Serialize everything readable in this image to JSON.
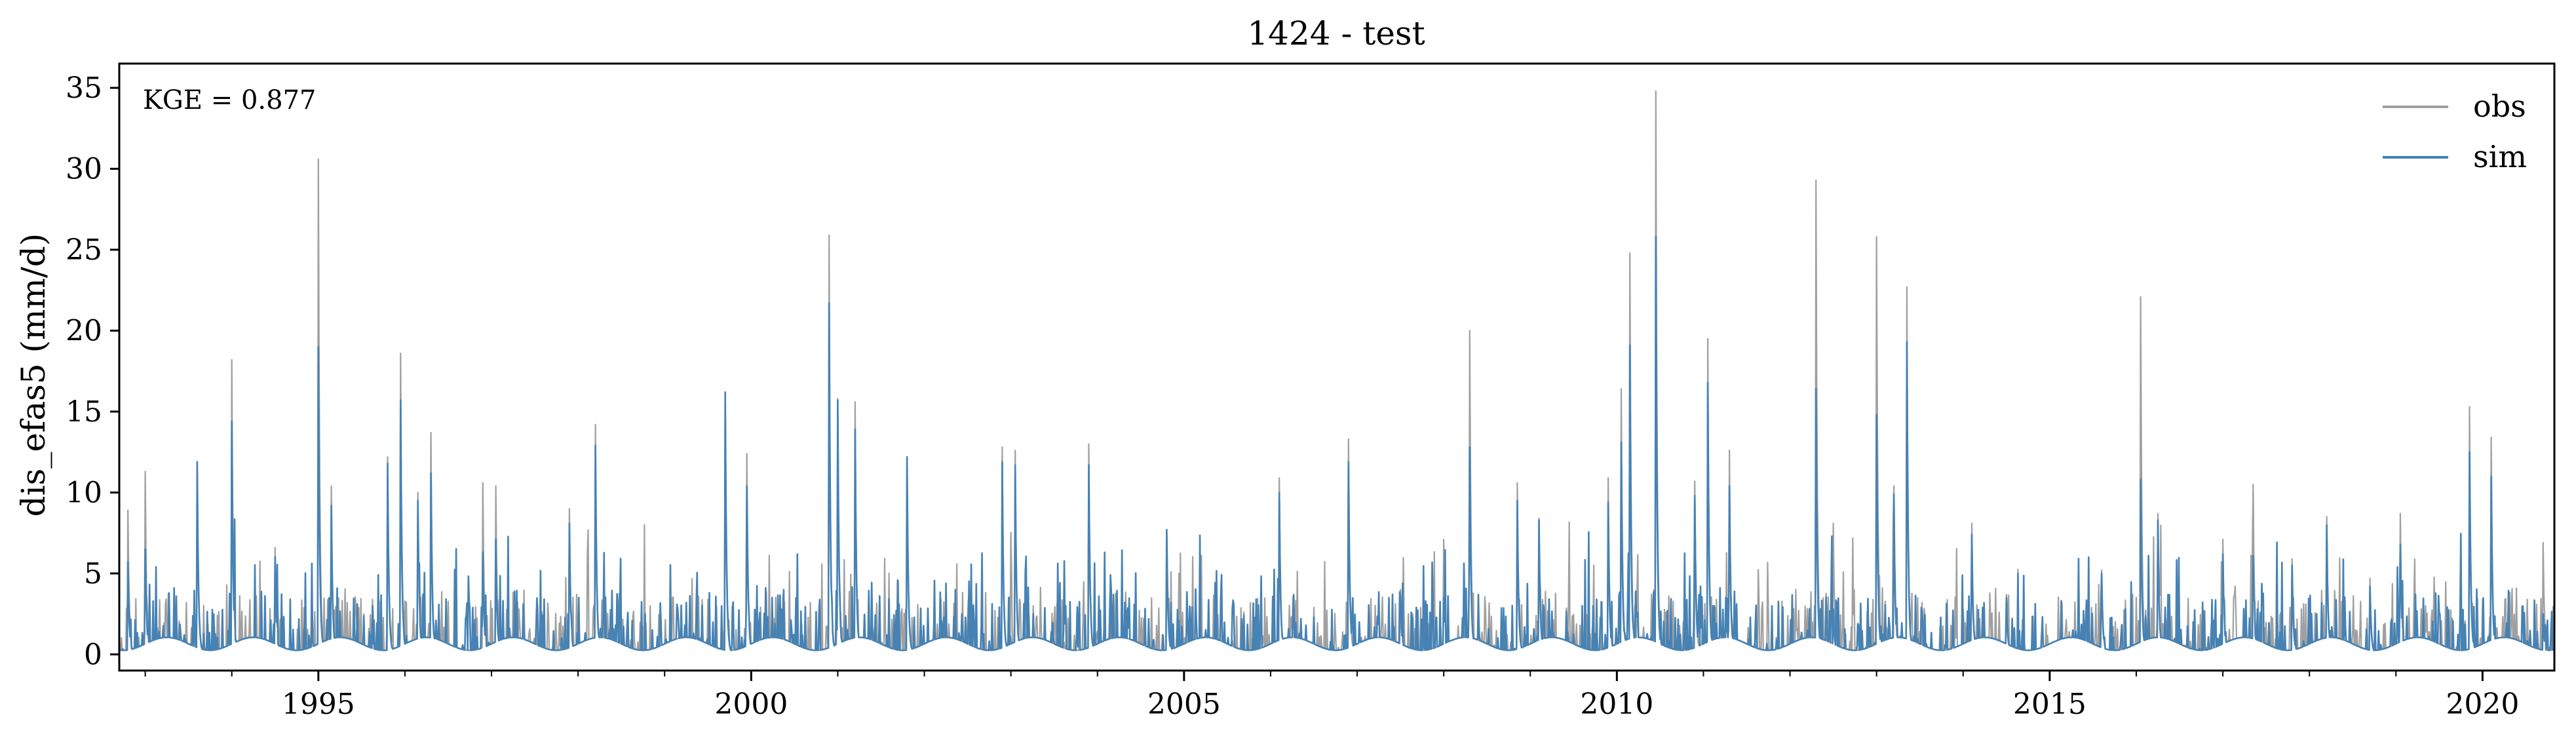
{
  "chart_data": {
    "type": "line",
    "title": "1424 - test",
    "xlabel": "",
    "ylabel": "dis_efas5 (mm/d)",
    "annotation": "KGE = 0.877",
    "xlim": [
      1992.7,
      2020.83
    ],
    "ylim": [
      -1.0,
      36.5
    ],
    "x_ticks": [
      1995,
      2000,
      2005,
      2010,
      2015,
      2020
    ],
    "x_tick_labels": [
      "1995",
      "2000",
      "2005",
      "2010",
      "2015",
      "2020"
    ],
    "y_ticks": [
      0,
      5,
      10,
      15,
      20,
      25,
      30,
      35
    ],
    "y_tick_labels": [
      "0",
      "5",
      "10",
      "15",
      "20",
      "25",
      "30",
      "35"
    ],
    "legend_position": "top-right",
    "grid": false,
    "x_unit": "decimal year",
    "series": [
      {
        "name": "obs",
        "color": "#a0a0a0",
        "peaks": [
          [
            1992.8,
            8.9
          ],
          [
            1993.0,
            11.3
          ],
          [
            1993.6,
            11.9
          ],
          [
            1994.0,
            18.2
          ],
          [
            1994.5,
            6.6
          ],
          [
            1995.0,
            30.6
          ],
          [
            1995.15,
            10.4
          ],
          [
            1995.8,
            12.2
          ],
          [
            1995.95,
            18.6
          ],
          [
            1996.15,
            10.0
          ],
          [
            1996.3,
            13.7
          ],
          [
            1996.9,
            10.6
          ],
          [
            1997.05,
            10.4
          ],
          [
            1997.9,
            9.0
          ],
          [
            1998.2,
            14.2
          ],
          [
            1999.7,
            16.2
          ],
          [
            1999.95,
            12.4
          ],
          [
            2000.9,
            25.9
          ],
          [
            2001.0,
            15.8
          ],
          [
            2001.2,
            15.6
          ],
          [
            2001.8,
            12.2
          ],
          [
            2002.9,
            12.8
          ],
          [
            2003.05,
            12.6
          ],
          [
            2003.9,
            13.0
          ],
          [
            2004.8,
            7.7
          ],
          [
            2006.1,
            10.9
          ],
          [
            2006.9,
            13.3
          ],
          [
            2007.5,
            4.0
          ],
          [
            2008.0,
            7.1
          ],
          [
            2008.3,
            20.0
          ],
          [
            2008.85,
            10.6
          ],
          [
            2009.1,
            8.4
          ],
          [
            2009.9,
            10.9
          ],
          [
            2010.05,
            16.4
          ],
          [
            2010.15,
            24.8
          ],
          [
            2010.45,
            34.8
          ],
          [
            2010.9,
            10.7
          ],
          [
            2011.05,
            19.5
          ],
          [
            2011.3,
            12.6
          ],
          [
            2012.3,
            29.3
          ],
          [
            2012.5,
            8.1
          ],
          [
            2013.0,
            25.8
          ],
          [
            2013.2,
            10.4
          ],
          [
            2013.35,
            22.7
          ],
          [
            2014.1,
            8.1
          ],
          [
            2014.5,
            3.7
          ],
          [
            2015.6,
            5.2
          ],
          [
            2016.05,
            22.1
          ],
          [
            2016.25,
            8.7
          ],
          [
            2017.0,
            7.1
          ],
          [
            2017.35,
            10.5
          ],
          [
            2017.8,
            5.9
          ],
          [
            2018.2,
            8.5
          ],
          [
            2018.7,
            4.7
          ],
          [
            2019.05,
            8.7
          ],
          [
            2019.85,
            15.3
          ],
          [
            2020.1,
            13.4
          ],
          [
            2020.7,
            6.9
          ]
        ]
      },
      {
        "name": "sim",
        "color": "#4682b4",
        "peaks": [
          [
            1992.8,
            5.7
          ],
          [
            1993.0,
            6.5
          ],
          [
            1993.6,
            11.9
          ],
          [
            1994.0,
            14.4
          ],
          [
            1994.5,
            6.0
          ],
          [
            1995.0,
            19.0
          ],
          [
            1995.15,
            9.2
          ],
          [
            1995.8,
            11.8
          ],
          [
            1995.95,
            15.7
          ],
          [
            1996.15,
            9.5
          ],
          [
            1996.3,
            11.2
          ],
          [
            1996.9,
            6.3
          ],
          [
            1997.05,
            7.1
          ],
          [
            1997.9,
            8.1
          ],
          [
            1998.2,
            12.9
          ],
          [
            1999.7,
            16.2
          ],
          [
            1999.95,
            10.4
          ],
          [
            2000.9,
            21.7
          ],
          [
            2001.0,
            15.7
          ],
          [
            2001.2,
            13.9
          ],
          [
            2001.8,
            12.2
          ],
          [
            2002.9,
            11.9
          ],
          [
            2003.05,
            11.7
          ],
          [
            2003.9,
            11.7
          ],
          [
            2004.8,
            7.7
          ],
          [
            2006.1,
            10.0
          ],
          [
            2006.9,
            11.9
          ],
          [
            2007.5,
            3.5
          ],
          [
            2008.0,
            3.5
          ],
          [
            2008.3,
            12.8
          ],
          [
            2008.85,
            9.5
          ],
          [
            2009.1,
            8.3
          ],
          [
            2009.9,
            9.4
          ],
          [
            2010.05,
            13.1
          ],
          [
            2010.15,
            19.1
          ],
          [
            2010.45,
            25.8
          ],
          [
            2010.9,
            9.8
          ],
          [
            2011.05,
            16.8
          ],
          [
            2011.3,
            10.4
          ],
          [
            2012.3,
            16.4
          ],
          [
            2012.5,
            2.8
          ],
          [
            2013.0,
            14.8
          ],
          [
            2013.2,
            9.9
          ],
          [
            2013.35,
            19.3
          ],
          [
            2014.1,
            7.4
          ],
          [
            2014.5,
            3.5
          ],
          [
            2015.6,
            5.0
          ],
          [
            2016.05,
            10.8
          ],
          [
            2016.25,
            8.3
          ],
          [
            2017.0,
            6.2
          ],
          [
            2017.35,
            6.1
          ],
          [
            2017.8,
            5.5
          ],
          [
            2018.2,
            8.0
          ],
          [
            2018.7,
            4.2
          ],
          [
            2019.05,
            6.8
          ],
          [
            2019.85,
            12.5
          ],
          [
            2020.1,
            11.0
          ],
          [
            2020.7,
            2.5
          ]
        ]
      }
    ]
  }
}
